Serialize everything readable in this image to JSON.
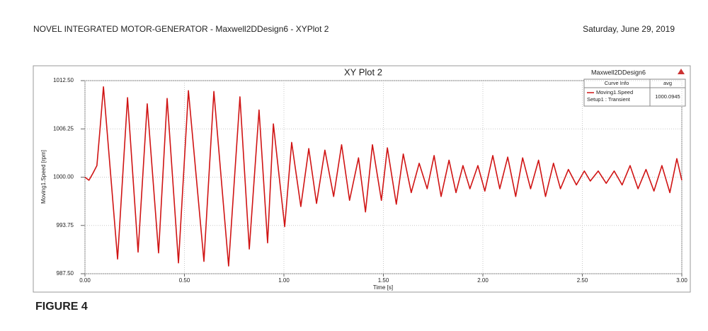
{
  "header": {
    "title": "NOVEL INTEGRATED MOTOR-GENERATOR - Maxwell2DDesign6 - XYPlot 2",
    "date": "Saturday, June 29, 2019"
  },
  "chart_data": {
    "type": "line",
    "title": "XY Plot 2",
    "design_label": "Maxwell2DDesign6",
    "x_label": "Time [s]",
    "y_label": "Moving1.Speed [rpm]",
    "legend_columns": [
      "Curve Info",
      "avg"
    ],
    "x": [
      0,
      0.02,
      0.04,
      0.06,
      0.075,
      0.093,
      0.164,
      0.214,
      0.267,
      0.313,
      0.37,
      0.413,
      0.47,
      0.52,
      0.598,
      0.648,
      0.722,
      0.779,
      0.826,
      0.875,
      0.918,
      0.947,
      1.004,
      1.039,
      1.085,
      1.125,
      1.164,
      1.206,
      1.25,
      1.29,
      1.33,
      1.375,
      1.41,
      1.445,
      1.49,
      1.52,
      1.565,
      1.6,
      1.64,
      1.68,
      1.72,
      1.755,
      1.79,
      1.83,
      1.865,
      1.9,
      1.935,
      1.975,
      2.01,
      2.05,
      2.085,
      2.125,
      2.165,
      2.2,
      2.24,
      2.28,
      2.315,
      2.355,
      2.39,
      2.43,
      2.47,
      2.51,
      2.54,
      2.58,
      2.62,
      2.66,
      2.7,
      2.74,
      2.78,
      2.82,
      2.86,
      2.9,
      2.94,
      2.975,
      3.0
    ],
    "series": [
      {
        "name": "Moving1.Speed",
        "setup": "Setup1 : Transient",
        "avg": "1000.0945",
        "color": "#d01414",
        "values": [
          1000,
          999.6,
          1000.5,
          1001.5,
          1006,
          1011.7,
          989.4,
          1010.3,
          990.3,
          1009.5,
          990.2,
          1010.2,
          988.9,
          1011.2,
          989.1,
          1011.1,
          988.5,
          1010.4,
          990.7,
          1008.7,
          991.5,
          1006.9,
          993.6,
          1004.5,
          996.2,
          1003.7,
          996.6,
          1003.5,
          997.5,
          1004.2,
          997.0,
          1002.5,
          995.5,
          1004.2,
          997.0,
          1003.8,
          996.5,
          1003.0,
          998.0,
          1001.8,
          998.5,
          1002.8,
          997.5,
          1002.2,
          998.0,
          1001.5,
          998.5,
          1001.5,
          998.2,
          1002.8,
          998.5,
          1002.6,
          997.5,
          1002.5,
          998.5,
          1002.2,
          997.5,
          1001.8,
          998.5,
          1001.0,
          999.0,
          1000.8,
          999.5,
          1000.8,
          999.2,
          1000.8,
          999.0,
          1001.5,
          998.5,
          1001.0,
          998.2,
          1001.5,
          998.0,
          1002.4,
          999.6
        ]
      }
    ],
    "xlim": [
      0,
      3
    ],
    "ylim": [
      987.5,
      1012.5
    ],
    "xticks": [
      {
        "value": 0,
        "label": "0.00"
      },
      {
        "value": 0.5,
        "label": "0.50"
      },
      {
        "value": 1,
        "label": "1.00"
      },
      {
        "value": 1.5,
        "label": "1.50"
      },
      {
        "value": 2,
        "label": "2.00"
      },
      {
        "value": 2.5,
        "label": "2.50"
      },
      {
        "value": 3,
        "label": "3.00"
      }
    ],
    "yticks": [
      {
        "value": 987.5,
        "label": "987.50"
      },
      {
        "value": 993.75,
        "label": "993.75"
      },
      {
        "value": 1000,
        "label": "1000.00"
      },
      {
        "value": 1006.25,
        "label": "1006.25"
      },
      {
        "value": 1012.5,
        "label": "1012.50"
      }
    ],
    "grid": true
  },
  "caption": "FIGURE 4"
}
